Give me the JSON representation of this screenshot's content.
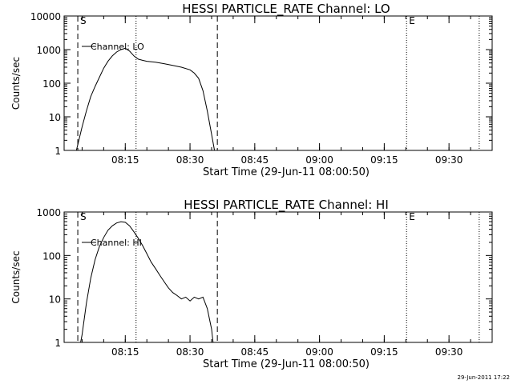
{
  "chart_data": [
    {
      "type": "line",
      "title": "HESSI PARTICLE_RATE Channel: LO",
      "xlabel": "Start Time (29-Jun-11 08:00:50)",
      "ylabel": "Counts/sec",
      "yscale": "log",
      "xlim": [
        "08:00:50",
        "09:40:00"
      ],
      "ylim": [
        1,
        10000
      ],
      "x_ticks": [
        "08:15",
        "08:30",
        "08:45",
        "09:00",
        "09:15",
        "09:30"
      ],
      "y_ticks": [
        "1",
        "10",
        "100",
        "1000",
        "10000"
      ],
      "legend": "Channel: LO",
      "legend_placement": "top-left",
      "markers": [
        {
          "text": "S",
          "time": "08:04:00",
          "style": "dashed"
        },
        {
          "text": "",
          "time": "08:36:20",
          "style": "dashed"
        },
        {
          "text": "",
          "time": "08:17:30",
          "style": "dotted"
        },
        {
          "text": "E",
          "time": "09:20:10",
          "style": "dotted"
        },
        {
          "text": "",
          "time": "09:37:00",
          "style": "dotted"
        }
      ],
      "series": [
        {
          "name": "Channel: LO",
          "points": [
            [
              "08:03:40",
              1
            ],
            [
              "08:04:00",
              1.5
            ],
            [
              "08:05:00",
              5
            ],
            [
              "08:06:00",
              15
            ],
            [
              "08:07:00",
              40
            ],
            [
              "08:08:00",
              80
            ],
            [
              "08:09:00",
              150
            ],
            [
              "08:10:00",
              280
            ],
            [
              "08:11:00",
              450
            ],
            [
              "08:12:00",
              650
            ],
            [
              "08:13:00",
              850
            ],
            [
              "08:14:00",
              1000
            ],
            [
              "08:15:00",
              1100
            ],
            [
              "08:16:00",
              900
            ],
            [
              "08:17:00",
              650
            ],
            [
              "08:18:00",
              520
            ],
            [
              "08:19:00",
              480
            ],
            [
              "08:20:00",
              450
            ],
            [
              "08:22:00",
              420
            ],
            [
              "08:24:00",
              380
            ],
            [
              "08:26:00",
              340
            ],
            [
              "08:28:00",
              300
            ],
            [
              "08:30:00",
              250
            ],
            [
              "08:31:00",
              200
            ],
            [
              "08:32:00",
              140
            ],
            [
              "08:33:00",
              60
            ],
            [
              "08:34:00",
              15
            ],
            [
              "08:35:00",
              3
            ],
            [
              "08:35:40",
              1
            ]
          ]
        }
      ]
    },
    {
      "type": "line",
      "title": "HESSI PARTICLE_RATE Channel: HI",
      "xlabel": "Start Time (29-Jun-11 08:00:50)",
      "ylabel": "Counts/sec",
      "yscale": "log",
      "xlim": [
        "08:00:50",
        "09:40:00"
      ],
      "ylim": [
        1,
        1000
      ],
      "x_ticks": [
        "08:15",
        "08:30",
        "08:45",
        "09:00",
        "09:15",
        "09:30"
      ],
      "y_ticks": [
        "1",
        "10",
        "100",
        "1000"
      ],
      "legend": "Channel: HI",
      "legend_placement": "top-left",
      "markers": [
        {
          "text": "S",
          "time": "08:04:00",
          "style": "dashed"
        },
        {
          "text": "",
          "time": "08:36:20",
          "style": "dashed"
        },
        {
          "text": "",
          "time": "08:17:30",
          "style": "dotted"
        },
        {
          "text": "E",
          "time": "09:20:10",
          "style": "dotted"
        },
        {
          "text": "",
          "time": "09:37:00",
          "style": "dotted"
        }
      ],
      "series": [
        {
          "name": "Channel: HI",
          "points": [
            [
              "08:04:40",
              1
            ],
            [
              "08:05:00",
              1.5
            ],
            [
              "08:06:00",
              8
            ],
            [
              "08:07:00",
              30
            ],
            [
              "08:08:00",
              80
            ],
            [
              "08:09:00",
              160
            ],
            [
              "08:10:00",
              260
            ],
            [
              "08:11:00",
              380
            ],
            [
              "08:12:00",
              480
            ],
            [
              "08:13:00",
              560
            ],
            [
              "08:14:00",
              600
            ],
            [
              "08:15:00",
              580
            ],
            [
              "08:16:00",
              480
            ],
            [
              "08:17:00",
              350
            ],
            [
              "08:18:00",
              250
            ],
            [
              "08:19:00",
              170
            ],
            [
              "08:20:00",
              110
            ],
            [
              "08:21:00",
              70
            ],
            [
              "08:22:00",
              50
            ],
            [
              "08:23:00",
              35
            ],
            [
              "08:24:00",
              25
            ],
            [
              "08:25:00",
              18
            ],
            [
              "08:26:00",
              14
            ],
            [
              "08:27:00",
              12
            ],
            [
              "08:28:00",
              10
            ],
            [
              "08:29:00",
              11
            ],
            [
              "08:30:00",
              9
            ],
            [
              "08:31:00",
              11
            ],
            [
              "08:32:00",
              10
            ],
            [
              "08:33:00",
              11
            ],
            [
              "08:34:00",
              6
            ],
            [
              "08:35:00",
              2
            ],
            [
              "08:35:20",
              1
            ]
          ]
        }
      ]
    }
  ],
  "footer": {
    "timestamp": "29-Jun-2011 17:22"
  }
}
